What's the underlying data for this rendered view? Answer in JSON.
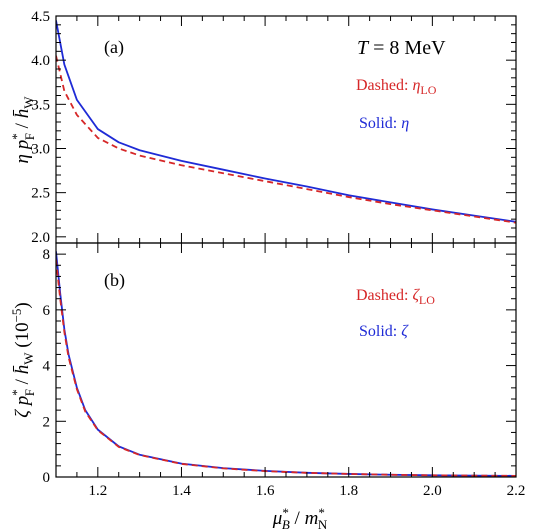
{
  "chart_data": [
    {
      "type": "line",
      "panel_label": "(a)",
      "ylabel": "η p*F / h̄W",
      "xlim": [
        1.1,
        2.2
      ],
      "ylim": [
        1.93,
        4.5
      ],
      "yticks": [
        2.0,
        2.5,
        3.0,
        3.5,
        4.0,
        4.5
      ],
      "yticklabels": [
        "2.0",
        "2.5",
        "3.0",
        "3.5",
        "4.0",
        "4.5"
      ],
      "annotations": {
        "temperature": "T = 8 MeV",
        "dashed": "Dashed: ηLO",
        "solid": "Solid: η"
      },
      "series": [
        {
          "name": "η",
          "style": "solid",
          "color": "#1f2bd6",
          "x": [
            1.1,
            1.12,
            1.15,
            1.2,
            1.25,
            1.3,
            1.4,
            1.5,
            1.6,
            1.7,
            1.8,
            1.9,
            2.0,
            2.1,
            2.2
          ],
          "y": [
            4.45,
            3.95,
            3.55,
            3.22,
            3.07,
            2.98,
            2.86,
            2.76,
            2.66,
            2.57,
            2.47,
            2.39,
            2.31,
            2.24,
            2.17
          ]
        },
        {
          "name": "ηLO",
          "style": "dashed",
          "color": "#d62728",
          "x": [
            1.1,
            1.12,
            1.15,
            1.2,
            1.25,
            1.3,
            1.4,
            1.5,
            1.6,
            1.7,
            1.8,
            1.9,
            2.0,
            2.1,
            2.2
          ],
          "y": [
            4.05,
            3.65,
            3.38,
            3.12,
            3.0,
            2.92,
            2.81,
            2.72,
            2.63,
            2.54,
            2.45,
            2.37,
            2.3,
            2.23,
            2.16
          ]
        }
      ]
    },
    {
      "type": "line",
      "panel_label": "(b)",
      "ylabel": "ζ p*F / h̄W (10−5)",
      "xlabel": "μ*B / m*N",
      "xlim": [
        1.1,
        2.2
      ],
      "ylim": [
        0,
        8.4
      ],
      "xticks": [
        1.2,
        1.4,
        1.6,
        1.8,
        2.0,
        2.2
      ],
      "xticklabels": [
        "1.2",
        "1.4",
        "1.6",
        "1.8",
        "2.0",
        "2.2"
      ],
      "yticks": [
        0,
        2,
        4,
        6,
        8
      ],
      "yticklabels": [
        "0",
        "2",
        "4",
        "6",
        "8"
      ],
      "annotations": {
        "dashed": "Dashed: ζLO",
        "solid": "Solid: ζ"
      },
      "series": [
        {
          "name": "ζ",
          "style": "solid",
          "color": "#1f2bd6",
          "x": [
            1.1,
            1.11,
            1.12,
            1.13,
            1.15,
            1.17,
            1.2,
            1.25,
            1.3,
            1.4,
            1.5,
            1.6,
            1.7,
            1.8,
            1.9,
            2.0,
            2.1,
            2.2
          ],
          "y": [
            8.1,
            6.6,
            5.3,
            4.4,
            3.2,
            2.4,
            1.7,
            1.1,
            0.8,
            0.48,
            0.32,
            0.22,
            0.15,
            0.11,
            0.08,
            0.06,
            0.05,
            0.04
          ]
        },
        {
          "name": "ζLO",
          "style": "dashed",
          "color": "#d62728",
          "x": [
            1.1,
            1.11,
            1.12,
            1.13,
            1.15,
            1.17,
            1.2,
            1.25,
            1.3,
            1.4,
            1.5,
            1.6,
            1.7,
            1.8,
            1.9,
            2.0,
            2.1,
            2.2
          ],
          "y": [
            7.8,
            6.4,
            5.2,
            4.3,
            3.15,
            2.35,
            1.68,
            1.08,
            0.79,
            0.47,
            0.31,
            0.21,
            0.15,
            0.11,
            0.08,
            0.06,
            0.05,
            0.04
          ]
        }
      ]
    }
  ]
}
